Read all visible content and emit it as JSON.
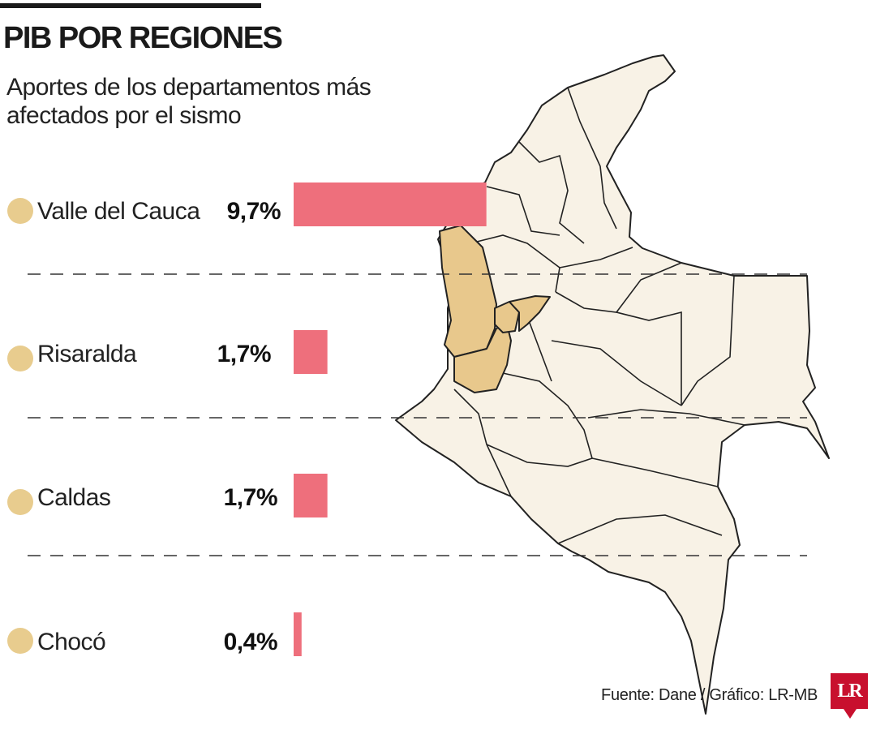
{
  "header": {
    "title": "PIB POR REGIONES",
    "subtitle": "Aportes de los departamentos más afectados por el sismo"
  },
  "chart_data": {
    "type": "bar",
    "orientation": "horizontal",
    "categories": [
      "Valle del Cauca",
      "Risaralda",
      "Caldas",
      "Chocó"
    ],
    "values": [
      9.7,
      1.7,
      1.7,
      0.4
    ],
    "value_labels": [
      "9,7%",
      "1,7%",
      "1,7%",
      "0,4%"
    ],
    "unit": "%",
    "xlim": [
      0,
      10
    ],
    "grid": false,
    "legend": "none"
  },
  "colors": {
    "bar": "#ee6f7c",
    "marker": "#e8cc8e",
    "highlight": "#e8c88c",
    "land": "#f8f2e6",
    "border": "#222222"
  },
  "footer": {
    "source": "Fuente: Dane / Gráfico: LR-MB",
    "logo": "LR"
  }
}
